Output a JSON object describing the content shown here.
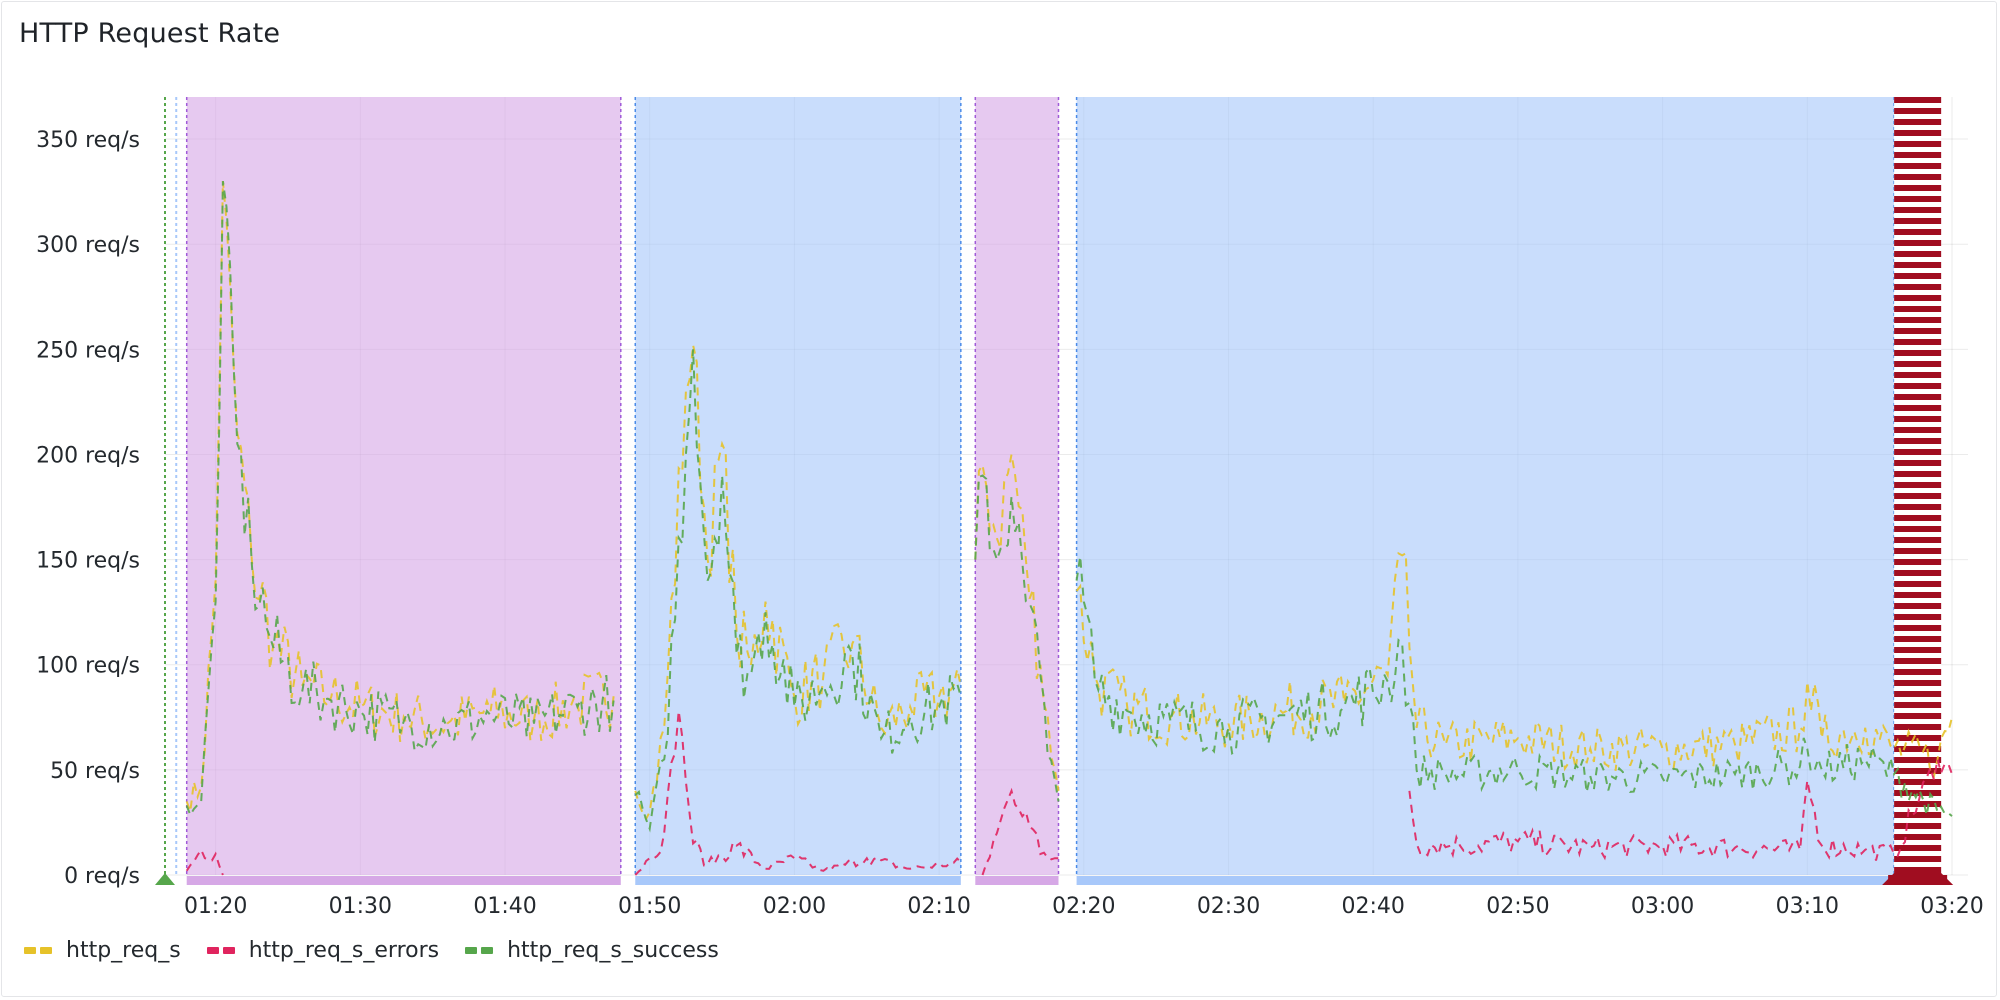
{
  "panel": {
    "title": "HTTP Request Rate"
  },
  "colors": {
    "http_req_s": "#e6c229",
    "http_req_s_errors": "#e0245e",
    "http_req_s_success": "#56a64b",
    "region_purple": "#d6a8e6",
    "region_blue": "#a8c8fa",
    "alert_red": "#a00d20"
  },
  "chart_data": {
    "type": "line",
    "ylim": [
      0,
      370
    ],
    "y_ticks": [
      "0 req/s",
      "50 req/s",
      "100 req/s",
      "150 req/s",
      "200 req/s",
      "250 req/s",
      "300 req/s",
      "350 req/s"
    ],
    "x_range": [
      "01:16:30",
      "03:20:00"
    ],
    "x_ticks": [
      "01:20",
      "01:30",
      "01:40",
      "01:50",
      "02:00",
      "02:10",
      "02:20",
      "02:30",
      "02:40",
      "02:50",
      "03:00",
      "03:10",
      "03:20"
    ],
    "legend": [
      {
        "name": "http_req_s",
        "color_key": "http_req_s"
      },
      {
        "name": "http_req_s_errors",
        "color_key": "http_req_s_errors"
      },
      {
        "name": "http_req_s_success",
        "color_key": "http_req_s_success"
      }
    ],
    "annotation_regions": [
      {
        "start": "01:18:00",
        "end": "01:48:00",
        "color_key": "region_purple"
      },
      {
        "start": "01:49:00",
        "end": "02:11:30",
        "color_key": "region_blue"
      },
      {
        "start": "02:12:30",
        "end": "02:18:15",
        "color_key": "region_purple"
      },
      {
        "start": "02:19:30",
        "end": "03:16:00",
        "color_key": "region_blue"
      },
      {
        "start": "03:16:00",
        "end": "03:19:15",
        "color_key": "alert_red"
      }
    ],
    "annotation_markers": [
      {
        "time": "01:16:30",
        "color_key": "http_req_s_success"
      },
      {
        "time": "01:17:00",
        "color_key": "region_blue"
      }
    ],
    "series": [
      {
        "name": "http_req_s",
        "color_key": "http_req_s",
        "segments": [
          [
            [
              "01:18:00",
              35
            ],
            [
              "01:19:00",
              42
            ],
            [
              "01:20:00",
              140
            ],
            [
              "01:20:30",
              330
            ],
            [
              "01:21:30",
              210
            ],
            [
              "01:22:30",
              150
            ],
            [
              "01:24:00",
              110
            ],
            [
              "01:26:00",
              90
            ],
            [
              "01:28:00",
              85
            ],
            [
              "01:30:00",
              80
            ],
            [
              "01:33:00",
              75
            ],
            [
              "01:36:00",
              72
            ],
            [
              "01:39:00",
              78
            ],
            [
              "01:42:00",
              74
            ],
            [
              "01:45:00",
              82
            ],
            [
              "01:47:30",
              85
            ]
          ],
          [
            [
              "01:49:00",
              40
            ],
            [
              "01:50:00",
              30
            ],
            [
              "01:51:00",
              70
            ],
            [
              "01:52:30",
              230
            ],
            [
              "01:53:00",
              252
            ],
            [
              "01:54:00",
              150
            ],
            [
              "01:55:00",
              205
            ],
            [
              "01:56:00",
              115
            ],
            [
              "01:57:00",
              100
            ],
            [
              "01:58:00",
              130
            ],
            [
              "02:00:00",
              85
            ],
            [
              "02:02:00",
              95
            ],
            [
              "02:04:00",
              110
            ],
            [
              "02:06:00",
              70
            ],
            [
              "02:08:00",
              80
            ],
            [
              "02:10:00",
              85
            ],
            [
              "02:11:30",
              90
            ]
          ],
          [
            [
              "02:12:30",
              150
            ],
            [
              "02:13:00",
              195
            ],
            [
              "02:14:00",
              160
            ],
            [
              "02:15:00",
              200
            ],
            [
              "02:16:00",
              150
            ],
            [
              "02:17:00",
              100
            ],
            [
              "02:18:00",
              50
            ],
            [
              "02:18:15",
              40
            ]
          ],
          [
            [
              "02:19:30",
              135
            ],
            [
              "02:21:00",
              90
            ],
            [
              "02:23:00",
              80
            ],
            [
              "02:26:00",
              75
            ],
            [
              "02:30:00",
              72
            ],
            [
              "02:34:00",
              78
            ],
            [
              "02:38:00",
              82
            ],
            [
              "02:41:00",
              95
            ],
            [
              "02:42:00",
              152
            ],
            [
              "02:43:00",
              70
            ],
            [
              "02:45:00",
              62
            ],
            [
              "02:50:00",
              65
            ],
            [
              "02:55:00",
              60
            ],
            [
              "03:00:00",
              60
            ],
            [
              "03:05:00",
              62
            ],
            [
              "03:09:30",
              70
            ],
            [
              "03:10:00",
              92
            ],
            [
              "03:11:00",
              65
            ],
            [
              "03:14:00",
              70
            ],
            [
              "03:16:00",
              60
            ],
            [
              "03:19:00",
              55
            ],
            [
              "03:20:00",
              75
            ]
          ]
        ]
      },
      {
        "name": "http_req_s_errors",
        "color_key": "http_req_s_errors",
        "segments": [
          [
            [
              "01:18:00",
              2
            ],
            [
              "01:19:00",
              12
            ],
            [
              "01:20:00",
              10
            ],
            [
              "01:20:30",
              0
            ]
          ],
          [
            [
              "01:49:00",
              0
            ],
            [
              "01:50:00",
              8
            ],
            [
              "01:51:00",
              20
            ],
            [
              "01:52:00",
              78
            ],
            [
              "01:53:00",
              15
            ],
            [
              "01:54:00",
              5
            ],
            [
              "01:56:00",
              14
            ],
            [
              "01:58:00",
              3
            ],
            [
              "02:00:00",
              8
            ],
            [
              "02:02:00",
              2
            ],
            [
              "02:05:00",
              8
            ],
            [
              "02:08:00",
              3
            ],
            [
              "02:11:30",
              6
            ]
          ],
          [
            [
              "02:13:00",
              0
            ],
            [
              "02:14:00",
              20
            ],
            [
              "02:15:00",
              40
            ],
            [
              "02:16:00",
              30
            ],
            [
              "02:17:00",
              10
            ],
            [
              "02:18:00",
              8
            ],
            [
              "02:18:15",
              8
            ]
          ],
          [
            [
              "02:42:30",
              40
            ],
            [
              "02:43:00",
              15
            ],
            [
              "02:46:00",
              14
            ],
            [
              "02:50:00",
              16
            ],
            [
              "02:55:00",
              13
            ],
            [
              "03:00:00",
              14
            ],
            [
              "03:05:00",
              13
            ],
            [
              "03:09:30",
              12
            ],
            [
              "03:10:00",
              45
            ],
            [
              "03:11:00",
              14
            ],
            [
              "03:14:00",
              12
            ],
            [
              "03:16:00",
              10
            ],
            [
              "03:19:00",
              55
            ],
            [
              "03:20:00",
              48
            ]
          ]
        ]
      },
      {
        "name": "http_req_s_success",
        "color_key": "http_req_s_success",
        "segments": [
          [
            [
              "01:18:00",
              33
            ],
            [
              "01:19:00",
              35
            ],
            [
              "01:20:00",
              130
            ],
            [
              "01:20:30",
              330
            ],
            [
              "01:21:30",
              205
            ],
            [
              "01:22:30",
              148
            ],
            [
              "01:24:00",
              108
            ],
            [
              "01:26:00",
              88
            ],
            [
              "01:28:00",
              83
            ],
            [
              "01:30:00",
              78
            ],
            [
              "01:33:00",
              73
            ],
            [
              "01:36:00",
              70
            ],
            [
              "01:39:00",
              76
            ],
            [
              "01:42:00",
              72
            ],
            [
              "01:45:00",
              80
            ],
            [
              "01:47:30",
              83
            ]
          ],
          [
            [
              "01:49:00",
              38
            ],
            [
              "01:50:00",
              22
            ],
            [
              "01:51:00",
              55
            ],
            [
              "01:52:30",
              200
            ],
            [
              "01:53:00",
              250
            ],
            [
              "01:54:00",
              140
            ],
            [
              "01:55:00",
              190
            ],
            [
              "01:56:00",
              105
            ],
            [
              "01:57:00",
              95
            ],
            [
              "01:58:00",
              125
            ],
            [
              "02:00:00",
              80
            ],
            [
              "02:02:00",
              90
            ],
            [
              "02:04:00",
              105
            ],
            [
              "02:06:00",
              65
            ],
            [
              "02:08:00",
              75
            ],
            [
              "02:10:00",
              80
            ],
            [
              "02:11:30",
              85
            ]
          ],
          [
            [
              "02:12:30",
              150
            ],
            [
              "02:13:00",
              190
            ],
            [
              "02:14:00",
              150
            ],
            [
              "02:15:00",
              180
            ],
            [
              "02:16:00",
              130
            ],
            [
              "02:17:00",
              95
            ],
            [
              "02:18:00",
              45
            ],
            [
              "02:18:15",
              35
            ]
          ],
          [
            [
              "02:19:30",
              140
            ],
            [
              "02:21:00",
              88
            ],
            [
              "02:23:00",
              78
            ],
            [
              "02:26:00",
              73
            ],
            [
              "02:30:00",
              70
            ],
            [
              "02:34:00",
              76
            ],
            [
              "02:38:00",
              80
            ],
            [
              "02:41:00",
              92
            ],
            [
              "02:42:00",
              110
            ],
            [
              "02:43:00",
              50
            ],
            [
              "02:45:00",
              48
            ],
            [
              "02:50:00",
              50
            ],
            [
              "02:55:00",
              47
            ],
            [
              "03:00:00",
              46
            ],
            [
              "03:05:00",
              48
            ],
            [
              "03:09:30",
              52
            ],
            [
              "03:10:00",
              60
            ],
            [
              "03:11:00",
              50
            ],
            [
              "03:14:00",
              55
            ],
            [
              "03:16:00",
              48
            ],
            [
              "03:19:00",
              30
            ],
            [
              "03:20:00",
              28
            ]
          ]
        ]
      }
    ]
  }
}
